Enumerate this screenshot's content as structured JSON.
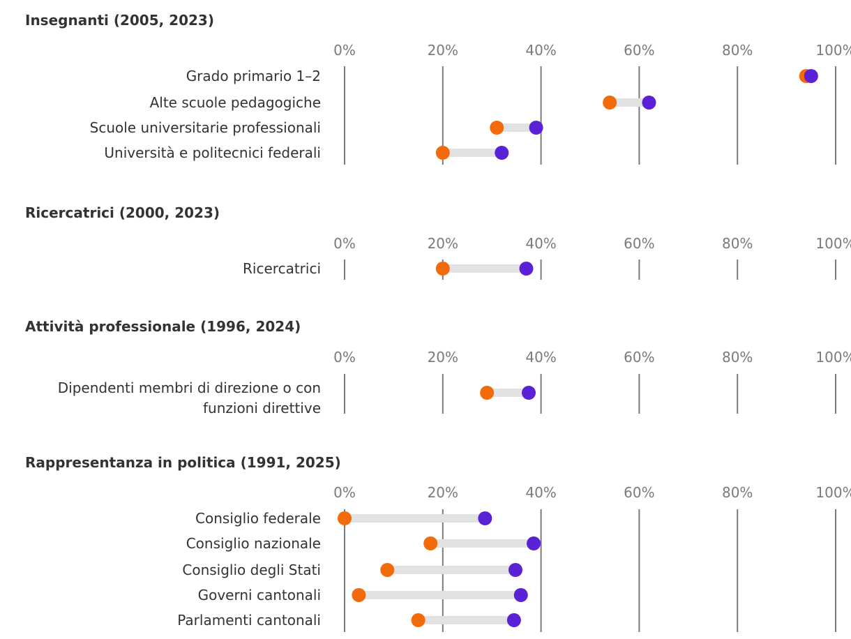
{
  "chart_data": [
    {
      "type": "dumbbell",
      "title": "Insegnanti (2005, 2023)",
      "years": [
        "2005",
        "2023"
      ],
      "x_ticks": [
        "0%",
        "20%",
        "40%",
        "60%",
        "80%",
        "100%"
      ],
      "xlim": [
        0,
        100
      ],
      "categories": [
        "Grado primario 1–2",
        "Alte scuole pedagogiche",
        "Scuole universitarie professionali",
        "Università e politecnici federali"
      ],
      "start_values": [
        94,
        54,
        31,
        20
      ],
      "end_values": [
        95,
        62,
        39,
        32
      ],
      "colors": {
        "start": "#f26a0a",
        "end": "#5b21d6"
      }
    },
    {
      "type": "dumbbell",
      "title": "Ricercatrici (2000, 2023)",
      "years": [
        "2000",
        "2023"
      ],
      "x_ticks": [
        "0%",
        "20%",
        "40%",
        "60%",
        "80%",
        "100%"
      ],
      "xlim": [
        0,
        100
      ],
      "categories": [
        "Ricercatrici"
      ],
      "start_values": [
        20
      ],
      "end_values": [
        37
      ],
      "colors": {
        "start": "#f26a0a",
        "end": "#5b21d6"
      }
    },
    {
      "type": "dumbbell",
      "title": "Attività professionale (1996, 2024)",
      "years": [
        "1996",
        "2024"
      ],
      "x_ticks": [
        "0%",
        "20%",
        "40%",
        "60%",
        "80%",
        "100%"
      ],
      "xlim": [
        0,
        100
      ],
      "categories": [
        "Dipendenti membri di direzione o con funzioni direttive"
      ],
      "category_lines": [
        [
          "Dipendenti membri di direzione o con",
          "funzioni direttive"
        ]
      ],
      "start_values": [
        29
      ],
      "end_values": [
        37.5
      ],
      "colors": {
        "start": "#f26a0a",
        "end": "#5b21d6"
      }
    },
    {
      "type": "dumbbell",
      "title": "Rappresentanza in politica (1991, 2025)",
      "years": [
        "1991",
        "2025"
      ],
      "x_ticks": [
        "0%",
        "20%",
        "40%",
        "60%",
        "80%",
        "100%"
      ],
      "xlim": [
        0,
        100
      ],
      "categories": [
        "Consiglio federale",
        "Consiglio nazionale",
        "Consiglio degli Stati",
        "Governi cantonali",
        "Parlamenti cantonali"
      ],
      "start_values": [
        0,
        17.5,
        8.7,
        2.9,
        15
      ],
      "end_values": [
        28.6,
        38.5,
        34.8,
        35.9,
        34.5
      ],
      "colors": {
        "start": "#f26a0a",
        "end": "#5b21d6"
      }
    }
  ]
}
